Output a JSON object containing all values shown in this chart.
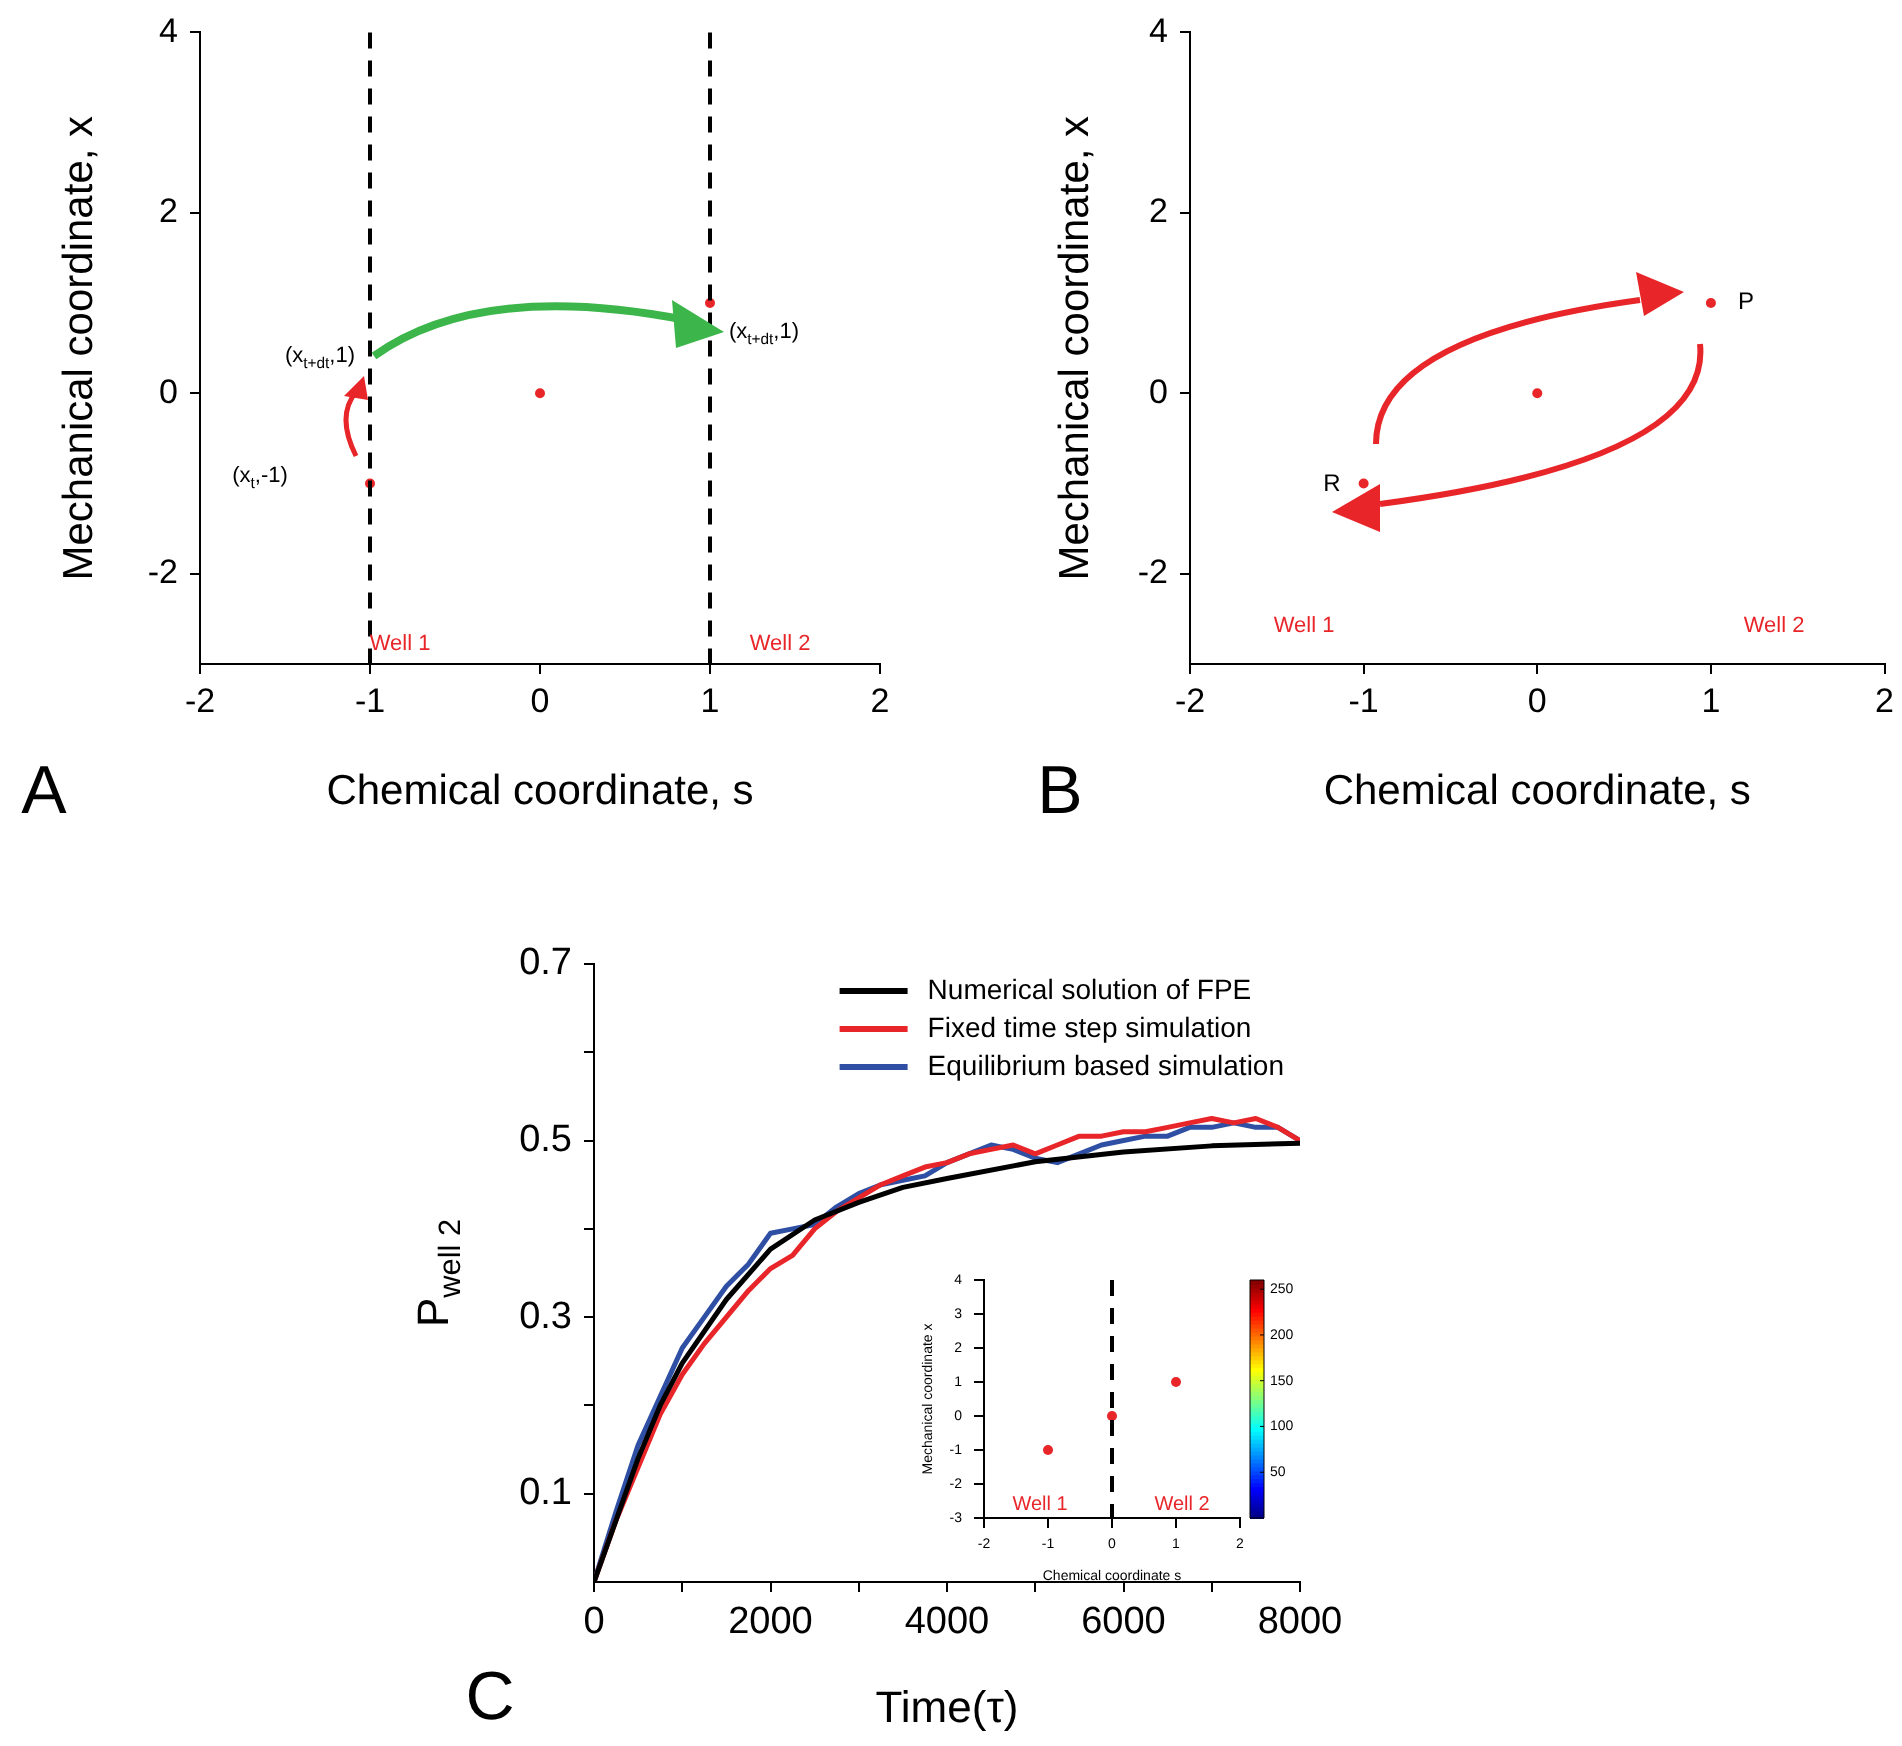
{
  "chart_data": [
    {
      "type": "scatter",
      "xlabel": "Chemical coordinate, s",
      "ylabel": "Mechanical coordinate, x",
      "xlim": [
        -2,
        2
      ],
      "xticks": [
        -2,
        -1,
        0,
        1,
        2
      ],
      "ylim": [
        -3,
        4
      ],
      "yticks": [
        -2,
        0,
        2,
        4
      ],
      "grid": false,
      "marker": "circle",
      "series": [
        {
          "color": "#e8262a",
          "x": [
            -1,
            0,
            1
          ],
          "values": [
            -1,
            0,
            1
          ]
        }
      ],
      "ref_lines": [
        {
          "axis": "x",
          "value": -1,
          "line_style": "dashed",
          "color": "#000000"
        },
        {
          "axis": "x",
          "value": 1,
          "line_style": "dashed",
          "color": "#000000"
        }
      ],
      "annotations": [
        "A",
        "(x$_{t+dt}$,1)",
        "(x$_{t}$,-1)",
        "(x$_{t+dt}$,1)",
        "Well 1",
        "Well 2"
      ]
    },
    {
      "type": "scatter",
      "xlabel": "Chemical coordinate, s",
      "ylabel": "Mechanical coordinate, x",
      "xlim": [
        -2,
        2
      ],
      "xticks": [
        -2,
        -1,
        0,
        1,
        2
      ],
      "ylim": [
        -3,
        4
      ],
      "yticks": [
        -2,
        0,
        2,
        4
      ],
      "grid": false,
      "marker": "circle",
      "series": [
        {
          "color": "#e8262a",
          "x": [
            -1,
            0,
            1
          ],
          "values": [
            -1,
            0,
            1
          ]
        }
      ],
      "annotations": [
        "B",
        "R",
        "P",
        "Well 1",
        "Well 2"
      ]
    },
    {
      "type": "line",
      "xlabel": "Time(τ)",
      "ylabel": "P$_{well 2}$",
      "xlim": [
        0,
        8000
      ],
      "xticks": [
        0,
        {
          "value": 1000,
          "label": null
        },
        2000,
        {
          "value": 3000,
          "label": null
        },
        4000,
        {
          "value": 5000,
          "label": null
        },
        6000,
        {
          "value": 7000,
          "label": null
        },
        8000
      ],
      "ylim": [
        0,
        0.7
      ],
      "yticks": [
        0.1,
        {
          "value": 0.2,
          "label": null
        },
        0.3,
        {
          "value": 0.4,
          "label": null
        },
        0.5,
        {
          "value": 0.6,
          "label": null
        },
        0.7
      ],
      "grid": false,
      "legend": "top right",
      "series": [
        {
          "name": "Numerical solution of FPE",
          "color": "#000000",
          "x": [
            0,
            250,
            500,
            750,
            1000,
            1500,
            2000,
            2500,
            3000,
            3500,
            4000,
            5000,
            6000,
            7000,
            8000
          ],
          "values": [
            0,
            0.07,
            0.14,
            0.2,
            0.248,
            0.32,
            0.377,
            0.41,
            0.43,
            0.447,
            0.457,
            0.476,
            0.487,
            0.494,
            0.497
          ]
        },
        {
          "name": "Fixed time step simulation",
          "color": "#e8262a",
          "x": [
            0,
            250,
            500,
            750,
            1000,
            1250,
            1500,
            1750,
            2000,
            2250,
            2500,
            2750,
            3000,
            3250,
            3500,
            3750,
            4000,
            4250,
            4500,
            4750,
            5000,
            5250,
            5500,
            5750,
            6000,
            6250,
            6500,
            6750,
            7000,
            7250,
            7500,
            7750,
            8000
          ],
          "values": [
            0,
            0.07,
            0.13,
            0.19,
            0.235,
            0.27,
            0.3,
            0.33,
            0.355,
            0.37,
            0.4,
            0.42,
            0.435,
            0.45,
            0.46,
            0.47,
            0.475,
            0.485,
            0.49,
            0.495,
            0.485,
            0.495,
            0.505,
            0.505,
            0.51,
            0.51,
            0.515,
            0.52,
            0.525,
            0.52,
            0.525,
            0.515,
            0.5
          ]
        },
        {
          "name": "Equilibrium based simulation",
          "color": "#2e4fa3",
          "x": [
            0,
            250,
            500,
            750,
            1000,
            1250,
            1500,
            1750,
            2000,
            2250,
            2500,
            2750,
            3000,
            3250,
            3500,
            3750,
            4000,
            4250,
            4500,
            4750,
            5000,
            5250,
            5500,
            5750,
            6000,
            6250,
            6500,
            6750,
            7000,
            7250,
            7500,
            7750,
            8000
          ],
          "values": [
            0,
            0.08,
            0.155,
            0.21,
            0.265,
            0.3,
            0.335,
            0.36,
            0.395,
            0.4,
            0.405,
            0.425,
            0.44,
            0.45,
            0.455,
            0.46,
            0.475,
            0.485,
            0.495,
            0.49,
            0.48,
            0.475,
            0.485,
            0.495,
            0.5,
            0.505,
            0.505,
            0.515,
            0.515,
            0.52,
            0.515,
            0.515,
            0.5
          ]
        }
      ],
      "annotations": [
        "C"
      ]
    },
    {
      "type": "scatter",
      "xlabel": "Chemical coordinate s",
      "ylabel": "Mechanical coordinate x",
      "xlim": [
        -2,
        2
      ],
      "xticks": [
        -2,
        -1,
        0,
        1,
        2
      ],
      "ylim": [
        -3,
        4
      ],
      "yticks": [
        -3,
        -2,
        -1,
        0,
        1,
        2,
        3,
        4
      ],
      "grid": false,
      "marker": "circle",
      "clim": [
        0,
        260
      ],
      "cticks": [
        50,
        100,
        150,
        200,
        250
      ],
      "series": [
        {
          "color": "#e8262a",
          "x": [
            -1,
            0,
            1
          ],
          "values": [
            -1,
            0,
            1
          ]
        }
      ],
      "ref_lines": [
        {
          "axis": "x",
          "value": 0,
          "line_style": "dashed",
          "color": "#000000"
        }
      ],
      "annotations": [
        "Well 1",
        "Well 2"
      ]
    }
  ]
}
